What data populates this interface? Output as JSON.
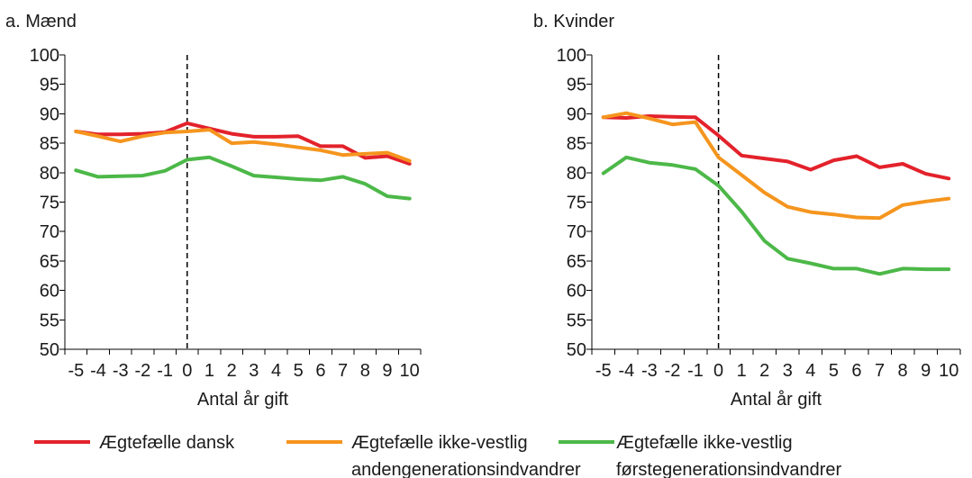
{
  "chart_data": [
    {
      "type": "line",
      "title": "a. Mænd",
      "xlabel": "Antal år gift",
      "ylabel": "",
      "x": [
        -5,
        -4,
        -3,
        -2,
        -1,
        0,
        1,
        2,
        3,
        4,
        5,
        6,
        7,
        8,
        9,
        10
      ],
      "x_tick_labels": [
        "-5",
        "-4",
        "-3",
        "-2",
        "-1",
        "0",
        "1",
        "2",
        "3",
        "4",
        "5",
        "6",
        "7",
        "8",
        "9",
        "10"
      ],
      "ylim": [
        50,
        100
      ],
      "y_ticks": [
        50,
        55,
        60,
        65,
        70,
        75,
        80,
        85,
        90,
        95,
        100
      ],
      "grid": false,
      "reference_line_x": 0,
      "series": [
        {
          "name": "Ægtefælle dansk",
          "color": "#e3222b",
          "values": [
            87.0,
            86.5,
            86.5,
            86.6,
            86.9,
            88.4,
            87.5,
            86.6,
            86.1,
            86.1,
            86.2,
            84.5,
            84.5,
            82.5,
            82.8,
            81.5
          ]
        },
        {
          "name": "Ægtefælle ikke-vestlig andengenerationsindvandrer",
          "color": "#f5951e",
          "values": [
            87.0,
            86.2,
            85.3,
            86.2,
            86.8,
            87.0,
            87.3,
            85.0,
            85.2,
            84.8,
            84.3,
            83.8,
            83.0,
            83.2,
            83.4,
            82.0
          ]
        },
        {
          "name": "Ægtefælle ikke-vestlig førstegenerationsindvandrer",
          "color": "#4cb848",
          "values": [
            80.4,
            79.3,
            79.4,
            79.5,
            80.3,
            82.2,
            82.6,
            81.1,
            79.5,
            79.2,
            78.9,
            78.7,
            79.3,
            78.1,
            76.0,
            75.6
          ]
        }
      ]
    },
    {
      "type": "line",
      "title": "b. Kvinder",
      "xlabel": "Antal år gift",
      "ylabel": "",
      "x": [
        -5,
        -4,
        -3,
        -2,
        -1,
        0,
        1,
        2,
        3,
        4,
        5,
        6,
        7,
        8,
        9,
        10
      ],
      "x_tick_labels": [
        "-5",
        "-4",
        "-3",
        "-2",
        "-1",
        "0",
        "1",
        "2",
        "3",
        "4",
        "5",
        "6",
        "7",
        "8",
        "9",
        "10"
      ],
      "ylim": [
        50,
        100
      ],
      "y_ticks": [
        50,
        55,
        60,
        65,
        70,
        75,
        80,
        85,
        90,
        95,
        100
      ],
      "grid": false,
      "reference_line_x": 0,
      "series": [
        {
          "name": "Ægtefælle dansk",
          "color": "#e3222b",
          "values": [
            89.4,
            89.3,
            89.6,
            89.5,
            89.4,
            86.3,
            82.9,
            82.4,
            81.9,
            80.5,
            82.1,
            82.8,
            80.9,
            81.5,
            79.8,
            79.0
          ]
        },
        {
          "name": "Ægtefælle ikke-vestlig andengenerationsindvandrer",
          "color": "#f5951e",
          "values": [
            89.4,
            90.1,
            89.2,
            88.2,
            88.6,
            82.6,
            79.6,
            76.6,
            74.2,
            73.3,
            72.9,
            72.4,
            72.3,
            74.5,
            75.1,
            75.6
          ]
        },
        {
          "name": "Ægtefælle ikke-vestlig førstegenerationsindvandrer",
          "color": "#4cb848",
          "values": [
            79.9,
            82.6,
            81.7,
            81.3,
            80.6,
            77.8,
            73.4,
            68.4,
            65.4,
            64.6,
            63.7,
            63.7,
            62.8,
            63.7,
            63.6,
            63.6
          ]
        }
      ]
    }
  ],
  "legend": {
    "placement": "bottom",
    "items": [
      {
        "color": "#e3222b",
        "lines": [
          "Ægtefælle dansk"
        ]
      },
      {
        "color": "#f5951e",
        "lines": [
          "Ægtefælle ikke-vestlig",
          "andengenerationsindvandrer"
        ]
      },
      {
        "color": "#4cb848",
        "lines": [
          "Ægtefælle ikke-vestlig",
          "førstegenerationsindvandrer"
        ]
      }
    ]
  }
}
